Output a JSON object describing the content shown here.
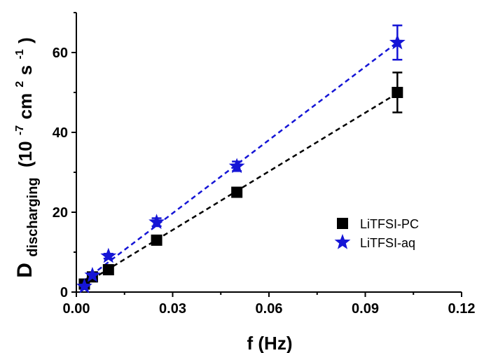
{
  "chart_data": {
    "type": "scatter",
    "xlabel": "f (Hz)",
    "ylabel": "D",
    "ylabel_subscript": "discharging",
    "ylabel_units": {
      "open": "(10",
      "exp1": "-7",
      "mid": " cm",
      "exp2": "2",
      "mid2": " s",
      "exp3": "-1",
      "close": ")"
    },
    "xlim": [
      0.0,
      0.12
    ],
    "ylim": [
      0,
      70
    ],
    "xticks": [
      0.0,
      0.03,
      0.06,
      0.09,
      0.12
    ],
    "xtick_labels": [
      "0.00",
      "0.03",
      "0.06",
      "0.09",
      "0.12"
    ],
    "yticks": [
      0,
      20,
      40,
      60
    ],
    "ytick_labels": [
      "0",
      "20",
      "40",
      "60"
    ],
    "grid": false,
    "legend_position": "right",
    "series": [
      {
        "name": "LiTFSI-PC",
        "marker": "square",
        "color": "#000000",
        "fit_line": true,
        "x": [
          0.0025,
          0.005,
          0.01,
          0.025,
          0.05,
          0.1
        ],
        "y": [
          2,
          3.8,
          5.6,
          13,
          25,
          50
        ],
        "yerr": [
          0.3,
          0.4,
          0.5,
          0.8,
          1.0,
          5.0
        ]
      },
      {
        "name": "LiTFSI-aq",
        "marker": "star",
        "color": "#1515d6",
        "fit_line": true,
        "x": [
          0.0025,
          0.005,
          0.01,
          0.025,
          0.05,
          0.1
        ],
        "y": [
          1.4,
          4.2,
          9,
          17.5,
          31.5,
          62.5
        ],
        "yerr": [
          0.3,
          0.4,
          0.6,
          1.0,
          1.2,
          4.3
        ]
      }
    ]
  }
}
